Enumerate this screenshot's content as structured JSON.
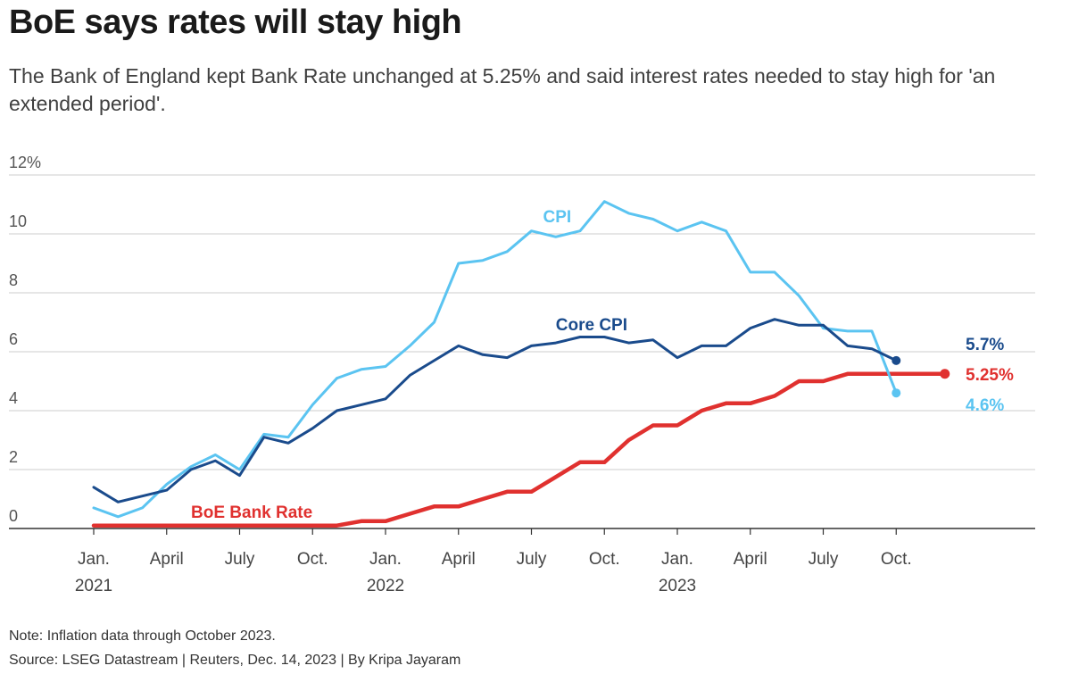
{
  "title": "BoE says rates will stay high",
  "subtitle": "The Bank of England kept Bank Rate unchanged at 5.25% and said interest rates needed to stay high for 'an extended period'.",
  "note": "Note: Inflation data through October 2023.",
  "source": "Source: LSEG Datastream | Reuters, Dec. 14, 2023 | By Kripa Jayaram",
  "colors": {
    "cpi": "#5bc4f1",
    "core_cpi": "#1a4b8c",
    "bank_rate": "#e0312f",
    "grid": "#cccccc",
    "axis": "#333333"
  },
  "chart_data": {
    "type": "line",
    "ylim": [
      0,
      12
    ],
    "grid": true,
    "y_ticks": [
      {
        "value": 0,
        "label": "0"
      },
      {
        "value": 2,
        "label": "2"
      },
      {
        "value": 4,
        "label": "4"
      },
      {
        "value": 6,
        "label": "6"
      },
      {
        "value": 8,
        "label": "8"
      },
      {
        "value": 10,
        "label": "10"
      },
      {
        "value": 12,
        "label": "12%"
      }
    ],
    "x_ticks": [
      {
        "date": "2021-01",
        "label": "Jan.",
        "year": "2021"
      },
      {
        "date": "2021-04",
        "label": "April",
        "year": ""
      },
      {
        "date": "2021-07",
        "label": "July",
        "year": ""
      },
      {
        "date": "2021-10",
        "label": "Oct.",
        "year": ""
      },
      {
        "date": "2022-01",
        "label": "Jan.",
        "year": "2022"
      },
      {
        "date": "2022-04",
        "label": "April",
        "year": ""
      },
      {
        "date": "2022-07",
        "label": "July",
        "year": ""
      },
      {
        "date": "2022-10",
        "label": "Oct.",
        "year": ""
      },
      {
        "date": "2023-01",
        "label": "Jan.",
        "year": "2023"
      },
      {
        "date": "2023-04",
        "label": "April",
        "year": ""
      },
      {
        "date": "2023-07",
        "label": "July",
        "year": ""
      },
      {
        "date": "2023-10",
        "label": "Oct.",
        "year": ""
      }
    ],
    "x_range": [
      "2021-01",
      "2024-01"
    ],
    "series": [
      {
        "name": "CPI",
        "key": "cpi",
        "end_label": "4.6%",
        "x": [
          "2021-01",
          "2021-02",
          "2021-03",
          "2021-04",
          "2021-05",
          "2021-06",
          "2021-07",
          "2021-08",
          "2021-09",
          "2021-10",
          "2021-11",
          "2021-12",
          "2022-01",
          "2022-02",
          "2022-03",
          "2022-04",
          "2022-05",
          "2022-06",
          "2022-07",
          "2022-08",
          "2022-09",
          "2022-10",
          "2022-11",
          "2022-12",
          "2023-01",
          "2023-02",
          "2023-03",
          "2023-04",
          "2023-05",
          "2023-06",
          "2023-07",
          "2023-08",
          "2023-09",
          "2023-10"
        ],
        "values": [
          0.7,
          0.4,
          0.7,
          1.5,
          2.1,
          2.5,
          2.0,
          3.2,
          3.1,
          4.2,
          5.1,
          5.4,
          5.5,
          6.2,
          7.0,
          9.0,
          9.1,
          9.4,
          10.1,
          9.9,
          10.1,
          11.1,
          10.7,
          10.5,
          10.1,
          10.4,
          10.1,
          8.7,
          8.7,
          7.9,
          6.8,
          6.7,
          6.7,
          4.6
        ]
      },
      {
        "name": "Core CPI",
        "key": "core_cpi",
        "end_label": "5.7%",
        "x": [
          "2021-01",
          "2021-02",
          "2021-03",
          "2021-04",
          "2021-05",
          "2021-06",
          "2021-07",
          "2021-08",
          "2021-09",
          "2021-10",
          "2021-11",
          "2021-12",
          "2022-01",
          "2022-02",
          "2022-03",
          "2022-04",
          "2022-05",
          "2022-06",
          "2022-07",
          "2022-08",
          "2022-09",
          "2022-10",
          "2022-11",
          "2022-12",
          "2023-01",
          "2023-02",
          "2023-03",
          "2023-04",
          "2023-05",
          "2023-06",
          "2023-07",
          "2023-08",
          "2023-09",
          "2023-10"
        ],
        "values": [
          1.4,
          0.9,
          1.1,
          1.3,
          2.0,
          2.3,
          1.8,
          3.1,
          2.9,
          3.4,
          4.0,
          4.2,
          4.4,
          5.2,
          5.7,
          6.2,
          5.9,
          5.8,
          6.2,
          6.3,
          6.5,
          6.5,
          6.3,
          6.4,
          5.8,
          6.2,
          6.2,
          6.8,
          7.1,
          6.9,
          6.9,
          6.2,
          6.1,
          5.7
        ]
      },
      {
        "name": "BoE Bank Rate",
        "key": "bank_rate",
        "end_label": "5.25%",
        "x": [
          "2021-01",
          "2021-02",
          "2021-03",
          "2021-04",
          "2021-05",
          "2021-06",
          "2021-07",
          "2021-08",
          "2021-09",
          "2021-10",
          "2021-11",
          "2021-12",
          "2022-01",
          "2022-02",
          "2022-03",
          "2022-04",
          "2022-05",
          "2022-06",
          "2022-07",
          "2022-08",
          "2022-09",
          "2022-10",
          "2022-11",
          "2022-12",
          "2023-01",
          "2023-02",
          "2023-03",
          "2023-04",
          "2023-05",
          "2023-06",
          "2023-07",
          "2023-08",
          "2023-09",
          "2023-10",
          "2023-11",
          "2023-12"
        ],
        "values": [
          0.1,
          0.1,
          0.1,
          0.1,
          0.1,
          0.1,
          0.1,
          0.1,
          0.1,
          0.1,
          0.1,
          0.25,
          0.25,
          0.5,
          0.75,
          0.75,
          1.0,
          1.25,
          1.25,
          1.75,
          2.25,
          2.25,
          3.0,
          3.5,
          3.5,
          4.0,
          4.25,
          4.25,
          4.5,
          5.0,
          5.0,
          5.25,
          5.25,
          5.25,
          5.25,
          5.25
        ]
      }
    ]
  }
}
